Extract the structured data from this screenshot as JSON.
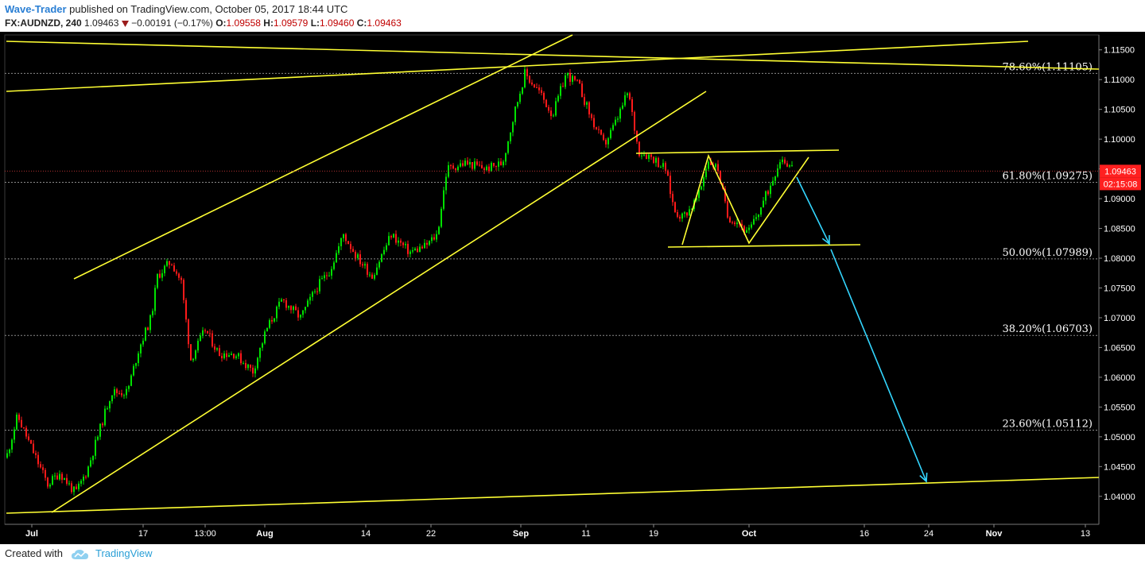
{
  "header": {
    "author": "Wave-Trader",
    "published_text": " published on TradingView.com, October 05, 2017 18:44 UTC",
    "symbol": "FX:AUDNZD, 240",
    "last": "1.09463",
    "change": "−0.00191 (−0.17%)",
    "change_icon": "down-triangle-icon",
    "o_label": "O:",
    "o_value": "1.09558",
    "h_label": "H:",
    "h_value": "1.09579",
    "l_label": "L:",
    "l_value": "1.09460",
    "c_label": "C:",
    "c_value": "1.09463"
  },
  "footer": {
    "created_with": "Created with",
    "brand": "TradingView",
    "brand_icon": "tradingview-cloud-icon"
  },
  "colors": {
    "background": "#000000",
    "up_candle": "#00e000",
    "down_candle": "#ff1a1a",
    "trendline": "#ffff33",
    "projection": "#33d6ff",
    "price_marker": "#ff2020",
    "axis_text": "#ffffff"
  },
  "chart_data": {
    "type": "candlestick",
    "symbol": "FX:AUDNZD",
    "interval": "240",
    "ylim": [
      1.0353,
      1.1175
    ],
    "y_ticks": [
      "1.11500",
      "1.11000",
      "1.10500",
      "1.10000",
      "1.09500",
      "1.09000",
      "1.08500",
      "1.08000",
      "1.07500",
      "1.07000",
      "1.06500",
      "1.06000",
      "1.05500",
      "1.05000",
      "1.04500",
      "1.04000"
    ],
    "x_tick_labels": [
      "Jul",
      "17",
      "13:00",
      "Aug",
      "14",
      "22",
      "Sep",
      "11",
      "19",
      "Oct",
      "16",
      "24",
      "Nov",
      "13"
    ],
    "last_price": "1.09463",
    "countdown": "02:15:08",
    "fib_levels": [
      {
        "label": "78.60%(1.11105)",
        "value": 1.11105
      },
      {
        "label": "61.80%(1.09275)",
        "value": 1.09275
      },
      {
        "label": "50.00%(1.07989)",
        "value": 1.07989
      },
      {
        "label": "38.20%(1.06703)",
        "value": 1.06703
      },
      {
        "label": "23.60%(1.05112)",
        "value": 1.05112
      }
    ],
    "price_path": [
      [
        0,
        1.0465
      ],
      [
        0.02,
        1.051
      ],
      [
        0.04,
        1.0475
      ],
      [
        0.06,
        1.0425
      ],
      [
        0.08,
        1.042
      ],
      [
        0.1,
        1.045
      ],
      [
        0.12,
        1.049
      ],
      [
        0.14,
        1.057
      ],
      [
        0.16,
        1.058
      ],
      [
        0.18,
        1.062
      ],
      [
        0.2,
        1.07
      ],
      [
        0.22,
        1.073
      ],
      [
        0.24,
        1.078
      ],
      [
        0.26,
        1.08
      ],
      [
        0.27,
        1.069
      ],
      [
        0.28,
        1.064
      ],
      [
        0.3,
        1.0685
      ],
      [
        0.32,
        1.065
      ],
      [
        0.34,
        1.065
      ],
      [
        0.36,
        1.067
      ],
      [
        0.38,
        1.07
      ],
      [
        0.4,
        1.072
      ],
      [
        0.42,
        1.069
      ],
      [
        0.44,
        1.072
      ],
      [
        0.46,
        1.076
      ],
      [
        0.48,
        1.079
      ],
      [
        0.5,
        1.082
      ],
      [
        0.52,
        1.084
      ],
      [
        0.53,
        1.081
      ],
      [
        0.54,
        1.08
      ],
      [
        0.56,
        1.078
      ],
      [
        0.58,
        1.08
      ],
      [
        0.6,
        1.084
      ],
      [
        0.62,
        1.085
      ],
      [
        0.64,
        1.0835
      ],
      [
        0.66,
        1.0815
      ],
      [
        0.68,
        1.084
      ],
      [
        0.7,
        1.085
      ],
      [
        0.72,
        1.09
      ],
      [
        0.74,
        1.095
      ],
      [
        0.76,
        1.0965
      ],
      [
        0.78,
        1.095
      ],
      [
        0.8,
        1.097
      ],
      [
        0.82,
        1.096
      ],
      [
        0.84,
        1.094
      ],
      [
        0.86,
        1.097
      ],
      [
        0.88,
        1.099
      ],
      [
        0.9,
        1.105
      ],
      [
        0.92,
        1.108
      ],
      [
        0.94,
        1.112
      ],
      [
        0.96,
        1.11
      ],
      [
        0.98,
        1.109
      ],
      [
        1.0,
        1.108
      ]
    ],
    "annotations": [
      "ascending channel upper line",
      "ascending channel lower line",
      "long support line",
      "long descending resistance line",
      "long ascending resistance line",
      "range top line",
      "range bottom line",
      "zig-zag pattern",
      "projection arrow to range bottom",
      "projection arrow to long support"
    ]
  }
}
